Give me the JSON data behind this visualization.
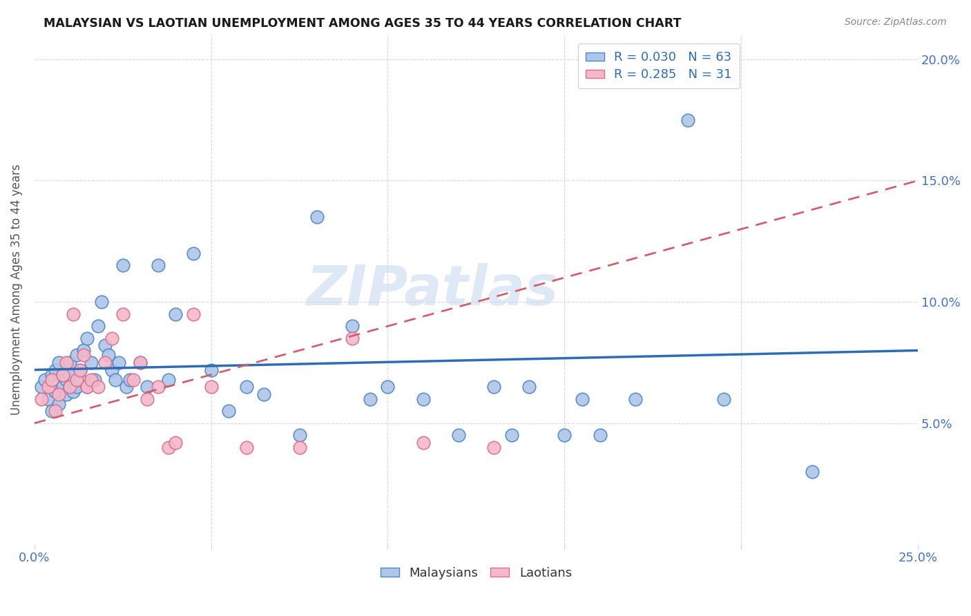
{
  "title": "MALAYSIAN VS LAOTIAN UNEMPLOYMENT AMONG AGES 35 TO 44 YEARS CORRELATION CHART",
  "source": "Source: ZipAtlas.com",
  "ylabel": "Unemployment Among Ages 35 to 44 years",
  "xlim": [
    0.0,
    0.25
  ],
  "ylim": [
    0.0,
    0.21
  ],
  "xticks": [
    0.0,
    0.05,
    0.1,
    0.15,
    0.2,
    0.25
  ],
  "xtick_labels": [
    "0.0%",
    "",
    "",
    "",
    "",
    "25.0%"
  ],
  "yticks_right": [
    0.05,
    0.1,
    0.15,
    0.2
  ],
  "ytick_labels_right": [
    "5.0%",
    "10.0%",
    "15.0%",
    "20.0%"
  ],
  "malaysian_color": "#aec6e8",
  "malaysian_edge_color": "#4f86c6",
  "laotian_color": "#f4b8c8",
  "laotian_edge_color": "#d97090",
  "regression_blue_color": "#2e6db4",
  "regression_pink_color": "#d06070",
  "legend_R_malaysian": "R = 0.030",
  "legend_N_malaysian": "N = 63",
  "legend_R_laotian": "R = 0.285",
  "legend_N_laotian": "N = 31",
  "watermark": "ZIPatlas",
  "background_color": "#ffffff",
  "grid_color": "#d8d8d8",
  "malaysian_x": [
    0.002,
    0.003,
    0.004,
    0.005,
    0.005,
    0.006,
    0.006,
    0.007,
    0.007,
    0.008,
    0.008,
    0.009,
    0.009,
    0.01,
    0.01,
    0.01,
    0.011,
    0.012,
    0.012,
    0.013,
    0.013,
    0.014,
    0.015,
    0.015,
    0.016,
    0.017,
    0.018,
    0.019,
    0.02,
    0.021,
    0.022,
    0.023,
    0.024,
    0.025,
    0.026,
    0.027,
    0.03,
    0.032,
    0.035,
    0.038,
    0.04,
    0.045,
    0.05,
    0.055,
    0.06,
    0.065,
    0.075,
    0.08,
    0.09,
    0.095,
    0.1,
    0.11,
    0.12,
    0.13,
    0.135,
    0.14,
    0.15,
    0.155,
    0.16,
    0.17,
    0.185,
    0.195,
    0.22
  ],
  "malaysian_y": [
    0.065,
    0.068,
    0.06,
    0.055,
    0.07,
    0.063,
    0.072,
    0.058,
    0.075,
    0.065,
    0.07,
    0.068,
    0.062,
    0.065,
    0.07,
    0.075,
    0.063,
    0.065,
    0.078,
    0.068,
    0.072,
    0.08,
    0.065,
    0.085,
    0.075,
    0.068,
    0.09,
    0.1,
    0.082,
    0.078,
    0.072,
    0.068,
    0.075,
    0.115,
    0.065,
    0.068,
    0.075,
    0.065,
    0.115,
    0.068,
    0.095,
    0.12,
    0.072,
    0.055,
    0.065,
    0.062,
    0.045,
    0.135,
    0.09,
    0.06,
    0.065,
    0.06,
    0.045,
    0.065,
    0.045,
    0.065,
    0.045,
    0.06,
    0.045,
    0.06,
    0.175,
    0.06,
    0.03
  ],
  "laotian_x": [
    0.002,
    0.004,
    0.005,
    0.006,
    0.007,
    0.008,
    0.009,
    0.01,
    0.011,
    0.012,
    0.013,
    0.014,
    0.015,
    0.016,
    0.018,
    0.02,
    0.022,
    0.025,
    0.028,
    0.03,
    0.032,
    0.035,
    0.038,
    0.04,
    0.045,
    0.05,
    0.06,
    0.075,
    0.09,
    0.11,
    0.13
  ],
  "laotian_y": [
    0.06,
    0.065,
    0.068,
    0.055,
    0.062,
    0.07,
    0.075,
    0.065,
    0.095,
    0.068,
    0.072,
    0.078,
    0.065,
    0.068,
    0.065,
    0.075,
    0.085,
    0.095,
    0.068,
    0.075,
    0.06,
    0.065,
    0.04,
    0.042,
    0.095,
    0.065,
    0.04,
    0.04,
    0.085,
    0.042,
    0.04
  ]
}
